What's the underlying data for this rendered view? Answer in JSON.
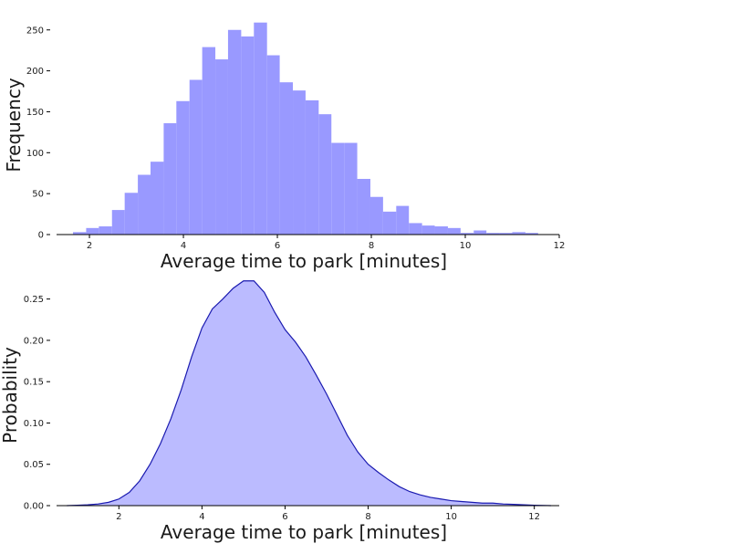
{
  "chart_data": [
    {
      "type": "bar",
      "xlabel": "Average time to park [minutes]",
      "ylabel": "Frequency",
      "xlim": [
        1.3,
        12
      ],
      "ylim": [
        0,
        262
      ],
      "xticks": [
        2,
        4,
        6,
        8,
        10,
        12
      ],
      "yticks": [
        0,
        50,
        100,
        150,
        200,
        250
      ],
      "bar_color": "#9999ff",
      "bin_edges": [
        1.65,
        1.93,
        2.2,
        2.48,
        2.75,
        3.03,
        3.3,
        3.58,
        3.85,
        4.13,
        4.4,
        4.68,
        4.95,
        5.23,
        5.5,
        5.78,
        6.05,
        6.33,
        6.6,
        6.88,
        7.15,
        7.43,
        7.7,
        7.98,
        8.25,
        8.53,
        8.8,
        9.08,
        9.35,
        9.63,
        9.9,
        10.18,
        10.45,
        10.73,
        11.0,
        11.28,
        11.55
      ],
      "values": [
        3,
        8,
        10,
        30,
        51,
        73,
        89,
        136,
        163,
        189,
        229,
        214,
        250,
        242,
        259,
        219,
        186,
        176,
        164,
        147,
        112,
        112,
        68,
        46,
        28,
        35,
        14,
        11,
        10,
        8,
        2,
        5,
        2,
        2,
        3,
        2
      ],
      "spines": [
        "bottom"
      ]
    },
    {
      "type": "area",
      "xlabel": "Average time to park [minutes]",
      "ylabel": "Probability",
      "xlim": [
        0.5,
        12.6
      ],
      "ylim": [
        0,
        0.275
      ],
      "xticks": [
        2,
        4,
        6,
        8,
        10,
        12
      ],
      "yticks": [
        0.0,
        0.05,
        0.1,
        0.15,
        0.2,
        0.25
      ],
      "ytick_labels": [
        "0.00",
        "0.05",
        "0.10",
        "0.15",
        "0.20",
        "0.25"
      ],
      "line_color": "#1a1ab0",
      "fill_color": "#bbbbff",
      "x": [
        0.75,
        1.0,
        1.25,
        1.5,
        1.75,
        2.0,
        2.25,
        2.5,
        2.75,
        3.0,
        3.25,
        3.5,
        3.75,
        4.0,
        4.25,
        4.5,
        4.75,
        5.0,
        5.25,
        5.5,
        5.75,
        6.0,
        6.25,
        6.5,
        6.75,
        7.0,
        7.25,
        7.5,
        7.75,
        8.0,
        8.25,
        8.5,
        8.75,
        9.0,
        9.25,
        9.5,
        9.75,
        10.0,
        10.25,
        10.5,
        10.75,
        11.0,
        11.25,
        11.5,
        11.75,
        12.0,
        12.25,
        12.4
      ],
      "y": [
        0.0,
        0.0005,
        0.001,
        0.002,
        0.004,
        0.008,
        0.016,
        0.03,
        0.05,
        0.075,
        0.105,
        0.14,
        0.18,
        0.215,
        0.238,
        0.25,
        0.263,
        0.272,
        0.272,
        0.258,
        0.234,
        0.213,
        0.198,
        0.18,
        0.158,
        0.135,
        0.11,
        0.085,
        0.065,
        0.05,
        0.04,
        0.031,
        0.023,
        0.017,
        0.013,
        0.01,
        0.008,
        0.006,
        0.005,
        0.004,
        0.003,
        0.003,
        0.002,
        0.0015,
        0.001,
        0.0005,
        0.0002,
        0.0
      ],
      "spines": [
        "bottom"
      ]
    }
  ]
}
